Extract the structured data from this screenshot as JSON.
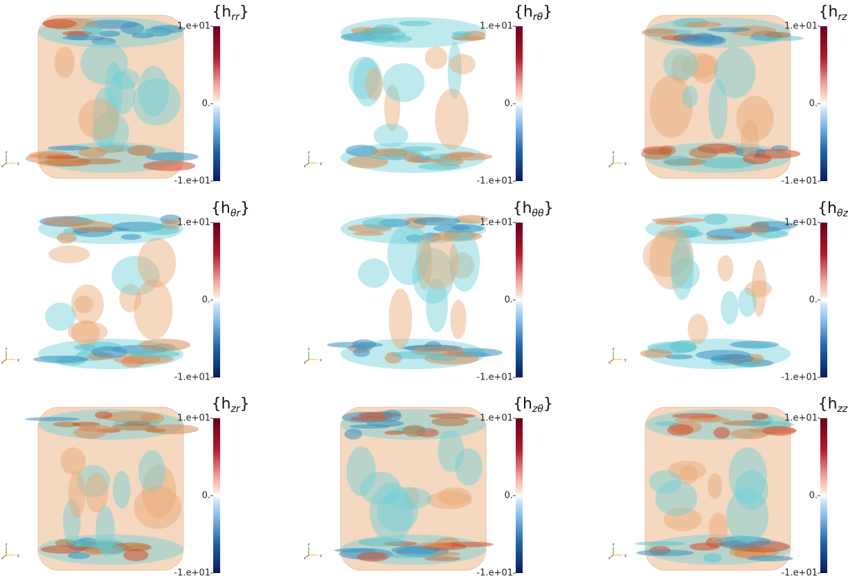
{
  "panels": [
    {
      "title": {
        "main": "{h",
        "sub": "rr",
        "end": "}"
      }
    },
    {
      "title": {
        "main": "{h",
        "sub": "rθ",
        "end": "}"
      }
    },
    {
      "title": {
        "main": "{h",
        "sub": "rz",
        "end": "}"
      }
    },
    {
      "title": {
        "main": "{h",
        "sub": "θr",
        "end": "}"
      }
    },
    {
      "title": {
        "main": "{h",
        "sub": "θθ",
        "end": "}"
      }
    },
    {
      "title": {
        "main": "{h",
        "sub": "θz",
        "end": "}"
      }
    },
    {
      "title": {
        "main": "{h",
        "sub": "zr",
        "end": "}"
      }
    },
    {
      "title": {
        "main": "{h",
        "sub": "zθ",
        "end": "}"
      }
    },
    {
      "title": {
        "main": "{h",
        "sub": "zz",
        "end": "}"
      }
    }
  ],
  "colorbar": {
    "range": [
      -10,
      10
    ],
    "ticks": [
      {
        "value": 10,
        "label": "1.e+01"
      },
      {
        "value": 0,
        "label": "0."
      },
      {
        "value": -10,
        "label": "-1.e+01"
      }
    ]
  },
  "axes_labels": [
    "z",
    "y",
    "x"
  ]
}
